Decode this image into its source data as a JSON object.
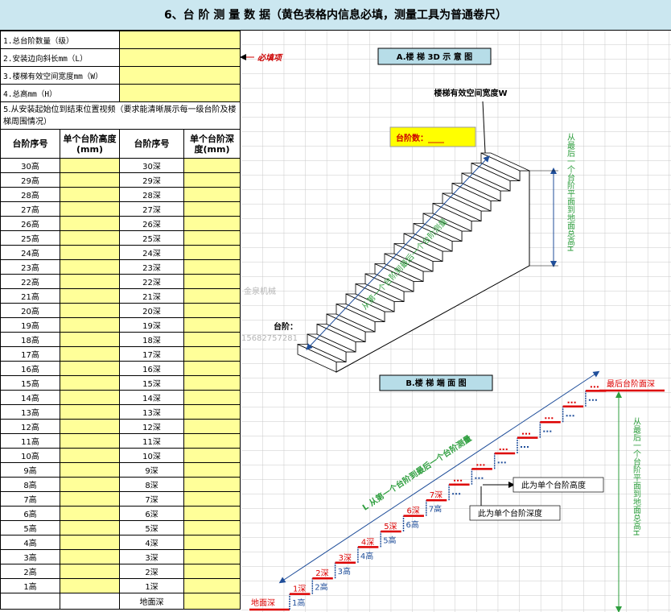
{
  "title": "6、台 阶 测 量 数 据（黄色表格内信息必填，测量工具为普通卷尺）",
  "form": {
    "fields": [
      "1.总台阶数量（级）",
      "2.安装边向斜长mm（L）",
      "3.楼梯有效空间宽度mm（W）",
      "4.总高mm（H）"
    ],
    "required_note": "必填项",
    "video_note": "5.从安装起始位到结束位置视频（要求能清晰展示每一级台阶及楼梯周围情况）"
  },
  "table": {
    "headers": [
      "台阶序号",
      "单个台阶高度(mm)",
      "台阶序号",
      "单个台阶深度(mm)"
    ],
    "rows": [
      [
        "30高",
        "30深"
      ],
      [
        "29高",
        "29深"
      ],
      [
        "28高",
        "28深"
      ],
      [
        "27高",
        "27深"
      ],
      [
        "26高",
        "26深"
      ],
      [
        "25高",
        "25深"
      ],
      [
        "24高",
        "24深"
      ],
      [
        "23高",
        "23深"
      ],
      [
        "22高",
        "22深"
      ],
      [
        "21高",
        "21深"
      ],
      [
        "20高",
        "20深"
      ],
      [
        "19高",
        "19深"
      ],
      [
        "18高",
        "18深"
      ],
      [
        "17高",
        "17深"
      ],
      [
        "16高",
        "16深"
      ],
      [
        "15高",
        "15深"
      ],
      [
        "14高",
        "14深"
      ],
      [
        "13高",
        "13深"
      ],
      [
        "12高",
        "12深"
      ],
      [
        "11高",
        "11深"
      ],
      [
        "10高",
        "10深"
      ],
      [
        "9高",
        "9深"
      ],
      [
        "8高",
        "8深"
      ],
      [
        "7高",
        "7深"
      ],
      [
        "6高",
        "6深"
      ],
      [
        "5高",
        "5深"
      ],
      [
        "4高",
        "4深"
      ],
      [
        "3高",
        "3深"
      ],
      [
        "2高",
        "2深"
      ],
      [
        "1高",
        "1深"
      ]
    ],
    "ground_row": "地面深"
  },
  "watermark": {
    "name": "金泉机械",
    "phone": "15682757281"
  },
  "diagram_3d": {
    "title": "A.楼 梯 3D 示 意 图",
    "width_label": "楼梯有效空间宽度W",
    "step_count_label": "台阶数：____",
    "step_label": "台阶：",
    "slope_label": "从第一个台阶到最后一个台阶测量",
    "height_label": "从最后一个台阶平面到地面总高H"
  },
  "diagram_side": {
    "title": "B.楼 梯 端 面 图",
    "top_label": "最后台阶面深",
    "ground_label": "地面深",
    "slope_label": "L 从第一个台阶到最后一个台阶测量",
    "height_label": "从最后一个台阶平面到地面总高H",
    "rise_note": "此为单个台阶高度",
    "depth_note": "此为单个台阶深度",
    "steps": [
      [
        "1深",
        "1高"
      ],
      [
        "2深",
        "2高"
      ],
      [
        "3深",
        "3高"
      ],
      [
        "4深",
        "4高"
      ],
      [
        "5深",
        "5高"
      ],
      [
        "6深",
        "6高"
      ],
      [
        "7深",
        "7高"
      ]
    ]
  }
}
